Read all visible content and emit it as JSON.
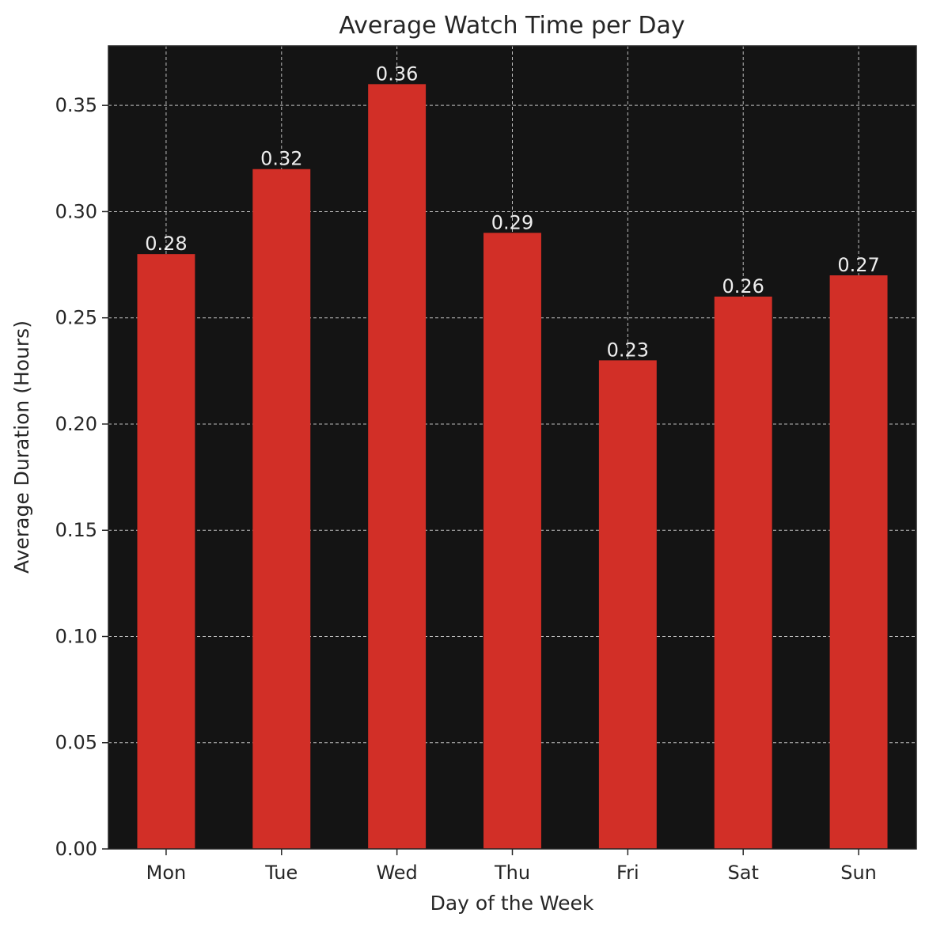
{
  "chart_data": {
    "type": "bar",
    "title": "Average Watch Time per Day",
    "xlabel": "Day of the Week",
    "ylabel": "Average Duration (Hours)",
    "categories": [
      "Mon",
      "Tue",
      "Wed",
      "Thu",
      "Fri",
      "Sat",
      "Sun"
    ],
    "values": [
      0.28,
      0.32,
      0.36,
      0.29,
      0.23,
      0.26,
      0.27
    ],
    "value_labels": [
      "0.28",
      "0.32",
      "0.36",
      "0.29",
      "0.23",
      "0.26",
      "0.27"
    ],
    "ylim": [
      0,
      0.378
    ],
    "yticks": [
      0.0,
      0.05,
      0.1,
      0.15,
      0.2,
      0.25,
      0.3,
      0.35
    ],
    "ytick_labels": [
      "0.00",
      "0.05",
      "0.10",
      "0.15",
      "0.20",
      "0.25",
      "0.30",
      "0.35"
    ],
    "grid": true,
    "colors": {
      "bar": "#d22f27",
      "plot_background": "#141414",
      "grid": "#bdbdbd",
      "data_label": "#eeeeee",
      "text": "#262626"
    }
  }
}
